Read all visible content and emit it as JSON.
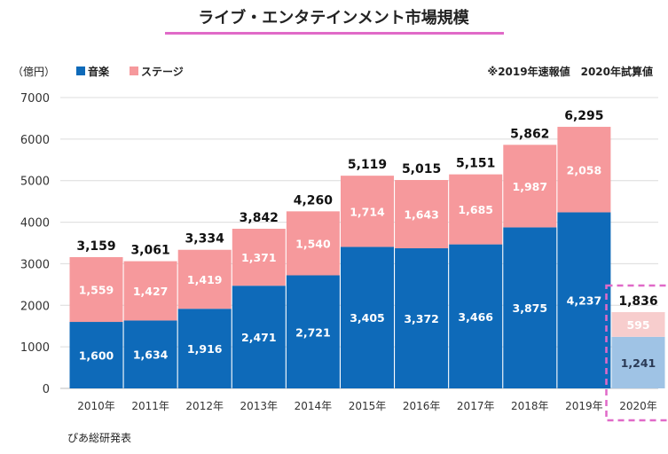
{
  "chart_data": {
    "type": "bar",
    "stacked": true,
    "title": "ライブ・エンタテインメント市場規模",
    "unit_label": "（億円）",
    "note": "※2019年速報値　2020年試算値",
    "source": "ぴあ総研発表",
    "ylim": [
      0,
      7000
    ],
    "yticks": [
      "0",
      "1000",
      "2000",
      "3000",
      "4000",
      "5000",
      "6000",
      "7000"
    ],
    "categories": [
      "2010年",
      "2011年",
      "2012年",
      "2013年",
      "2014年",
      "2015年",
      "2016年",
      "2017年",
      "2018年",
      "2019年",
      "2020年"
    ],
    "series": [
      {
        "name": "音楽",
        "color": "#0e6ab9",
        "highlight_color": "#9fc3e5",
        "values": [
          1600,
          1634,
          1916,
          2471,
          2721,
          3405,
          3372,
          3466,
          3875,
          4237,
          1241
        ],
        "labels": [
          "1,600",
          "1,634",
          "1,916",
          "2,471",
          "2,721",
          "3,405",
          "3,372",
          "3,466",
          "3,875",
          "4,237",
          "1,241"
        ]
      },
      {
        "name": "ステージ",
        "color": "#f6999c",
        "highlight_color": "#f7cdcd",
        "values": [
          1559,
          1427,
          1419,
          1371,
          1540,
          1714,
          1643,
          1685,
          1987,
          2058,
          595
        ],
        "labels": [
          "1,559",
          "1,427",
          "1,419",
          "1,371",
          "1,540",
          "1,714",
          "1,643",
          "1,685",
          "1,987",
          "2,058",
          "595"
        ]
      }
    ],
    "totals": [
      3159,
      3061,
      3334,
      3842,
      4260,
      5119,
      5015,
      5151,
      5862,
      6295,
      1836
    ],
    "total_labels": [
      "3,159",
      "3,061",
      "3,334",
      "3,842",
      "4,260",
      "5,119",
      "5,015",
      "5,151",
      "5,862",
      "6,295",
      "1,836"
    ],
    "highlighted_category": "2020年",
    "title_underline_color": "#e06ac8",
    "highlight_border_color": "#e06ac8",
    "grid": true,
    "legend": "top-left"
  }
}
